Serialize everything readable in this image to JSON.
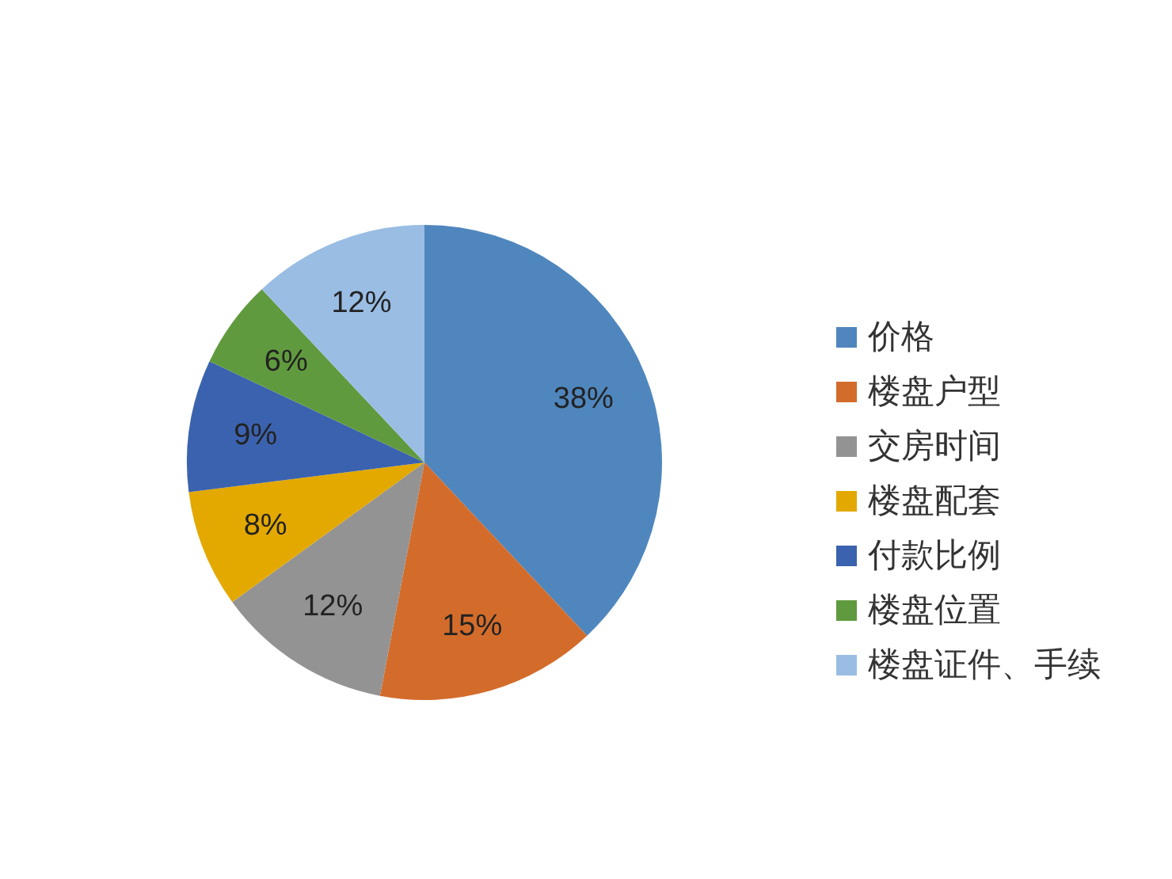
{
  "chart_data": {
    "type": "pie",
    "categories": [
      "价格",
      "楼盘户型",
      "交房时间",
      "楼盘配套",
      "付款比例",
      "楼盘位置",
      "楼盘证件、手续"
    ],
    "values": [
      38,
      15,
      12,
      8,
      9,
      6,
      12
    ],
    "value_labels": [
      "38%",
      "15%",
      "12%",
      "8%",
      "9%",
      "6%",
      "12%"
    ],
    "colors": [
      "#4f86bd",
      "#d36c2b",
      "#939393",
      "#e3a900",
      "#3b62ae",
      "#609a3e",
      "#9abde4"
    ],
    "legend": "right"
  }
}
